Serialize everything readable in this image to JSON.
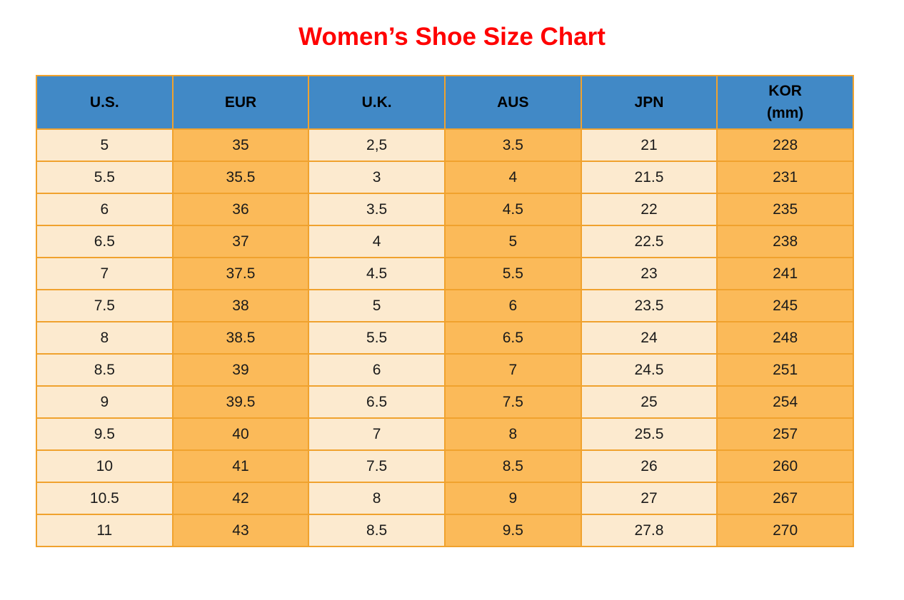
{
  "title": "Women’s Shoe Size Chart",
  "colors": {
    "title": "#ff0000",
    "header_bg": "#4189c6",
    "cell_light": "#fceacf",
    "cell_orange": "#fbba59",
    "border": "#f0a22e"
  },
  "chart_data": {
    "type": "table",
    "title": "Women’s Shoe Size Chart",
    "columns": [
      {
        "key": "us",
        "label": "U.S."
      },
      {
        "key": "eur",
        "label": "EUR"
      },
      {
        "key": "uk",
        "label": "U.K."
      },
      {
        "key": "aus",
        "label": "AUS"
      },
      {
        "key": "jpn",
        "label": "JPN"
      },
      {
        "key": "kor",
        "label": "KOR",
        "sublabel": "(mm)"
      }
    ],
    "rows": [
      [
        "5",
        "35",
        "2,5",
        "3.5",
        "21",
        "228"
      ],
      [
        "5.5",
        "35.5",
        "3",
        "4",
        "21.5",
        "231"
      ],
      [
        "6",
        "36",
        "3.5",
        "4.5",
        "22",
        "235"
      ],
      [
        "6.5",
        "37",
        "4",
        "5",
        "22.5",
        "238"
      ],
      [
        "7",
        "37.5",
        "4.5",
        "5.5",
        "23",
        "241"
      ],
      [
        "7.5",
        "38",
        "5",
        "6",
        "23.5",
        "245"
      ],
      [
        "8",
        "38.5",
        "5.5",
        "6.5",
        "24",
        "248"
      ],
      [
        "8.5",
        "39",
        "6",
        "7",
        "24.5",
        "251"
      ],
      [
        "9",
        "39.5",
        "6.5",
        "7.5",
        "25",
        "254"
      ],
      [
        "9.5",
        "40",
        "7",
        "8",
        "25.5",
        "257"
      ],
      [
        "10",
        "41",
        "7.5",
        "8.5",
        "26",
        "260"
      ],
      [
        "10.5",
        "42",
        "8",
        "9",
        "27",
        "267"
      ],
      [
        "11",
        "43",
        "8.5",
        "9.5",
        "27.8",
        "270"
      ]
    ]
  }
}
